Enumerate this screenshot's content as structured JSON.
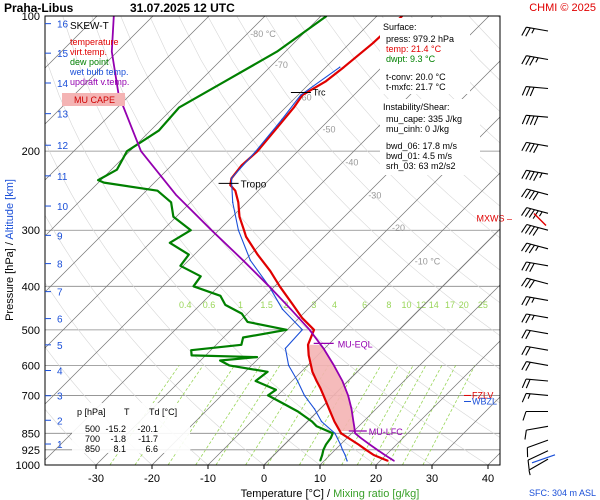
{
  "header": {
    "station": "Praha-Libus",
    "datetime": "31.07.2025 12 UTC",
    "copyright": "CHMI © 2025"
  },
  "legend": {
    "title": "SKEW-T",
    "items": [
      {
        "label": "temperature",
        "color": "#e00000"
      },
      {
        "label": "virt.temp.",
        "color": "#e00000"
      },
      {
        "label": "dew point",
        "color": "#008000"
      },
      {
        "label": "wet bulb temp.",
        "color": "#1a4fd8"
      },
      {
        "label": "updraft v.temp.",
        "color": "#9400b0"
      }
    ],
    "cape_badge": "MU CAPE"
  },
  "surface_panel": {
    "title": "Surface:",
    "rows": [
      {
        "text": "press: 979.2 hPa",
        "color": "#000000"
      },
      {
        "text": "temp: 21.4 °C",
        "color": "#e00000"
      },
      {
        "text": "dwpt: 9.3 °C",
        "color": "#008000"
      },
      {
        "text": "t-conv: 20.0 °C",
        "color": "#000000"
      },
      {
        "text": "t-mxfc: 21.7 °C",
        "color": "#000000"
      }
    ]
  },
  "instability_panel": {
    "title": "Instability/Shear:",
    "rows": [
      "mu_cape: 335 J/kg",
      "mu_cinh: 0 J/kg",
      "bwd_06: 17.8 m/s",
      "bwd_01: 4.5 m/s",
      "srh_03: 63 m2/s2"
    ]
  },
  "level_table": {
    "headers": [
      "p [hPa]",
      "T",
      "Td [°C]"
    ],
    "rows": [
      [
        "500",
        "-15.2",
        "-20.1"
      ],
      [
        "700",
        "-1.8",
        "-11.7"
      ],
      [
        "850",
        "8.1",
        "6.6"
      ]
    ]
  },
  "footer": {
    "sfc": "SFC: 304 m ASL"
  },
  "colors": {
    "temperature": "#e00000",
    "dewpoint": "#008000",
    "wetbulb": "#1a4fd8",
    "updraft": "#9400b0",
    "isotherm": "#777777",
    "isobar": "#888888",
    "mixing_ratio": "#9ad65a",
    "cape_fill": "#f4b4b4"
  },
  "chart_data": {
    "type": "line",
    "title": "Praha-Libus 31.07.2025 12 UTC",
    "xlabel": "Temperature [°C] / Mixing ratio [g/kg]",
    "ylabel": "Pressure [hPa] / Altitude [km]",
    "xlim": [
      -35,
      45
    ],
    "ylim": [
      1000,
      100
    ],
    "y_scale": "log",
    "grid": true,
    "x_ticks": [
      -30,
      -20,
      -10,
      0,
      10,
      20,
      30,
      40
    ],
    "pressure_ticks": [
      100,
      200,
      300,
      400,
      500,
      600,
      700,
      850,
      925,
      1000
    ],
    "altitude_ticks": [
      {
        "km": "16",
        "p": 104
      },
      {
        "km": "15",
        "p": 121
      },
      {
        "km": "14",
        "p": 141
      },
      {
        "km": "13",
        "p": 165
      },
      {
        "km": "12",
        "p": 194
      },
      {
        "km": "11",
        "p": 227
      },
      {
        "km": "10",
        "p": 265
      },
      {
        "km": "9",
        "p": 308
      },
      {
        "km": "8",
        "p": 356
      },
      {
        "km": "7",
        "p": 411
      },
      {
        "km": "6",
        "p": 472
      },
      {
        "km": "5",
        "p": 540
      },
      {
        "km": "4",
        "p": 616
      },
      {
        "km": "3",
        "p": 701
      },
      {
        "km": "2",
        "p": 795
      },
      {
        "km": "1",
        "p": 898
      }
    ],
    "isotherm_labels": [
      {
        "t": -80,
        "label": "-80 °C",
        "p": 109
      },
      {
        "t": -70,
        "label": "-70",
        "p": 128
      },
      {
        "t": -60,
        "label": "-60",
        "p": 151
      },
      {
        "t": -50,
        "label": "-50",
        "p": 178
      },
      {
        "t": -40,
        "label": "-40",
        "p": 211
      },
      {
        "t": -30,
        "label": "-30",
        "p": 250
      },
      {
        "t": -20,
        "label": "-20",
        "p": 295
      },
      {
        "t": -10,
        "label": "-10 °C",
        "p": 350
      }
    ],
    "mixing_ratio_labels": [
      "0.4",
      "0.6",
      "1",
      "1.5",
      "2",
      "3",
      "4",
      "6",
      "8",
      "10",
      "12",
      "14",
      "17",
      "20",
      "25"
    ],
    "mixing_ratio_values": [
      0.4,
      0.6,
      1,
      1.5,
      2,
      3,
      4,
      6,
      8,
      10,
      12,
      14,
      17,
      20,
      25
    ],
    "series": [
      {
        "name": "temperature",
        "p": [
          979,
          950,
          925,
          900,
          850,
          800,
          750,
          700,
          675,
          650,
          620,
          600,
          570,
          540,
          500,
          470,
          440,
          400,
          370,
          340,
          310,
          300,
          280,
          260,
          245,
          238,
          230,
          215,
          200,
          180,
          160,
          150,
          140,
          130,
          115,
          100
        ],
        "t": [
          21.4,
          17.8,
          15.5,
          13.2,
          8.1,
          4.8,
          1.6,
          -1.8,
          -3.6,
          -5.6,
          -8.0,
          -9.4,
          -11.6,
          -13.6,
          -15.2,
          -19.5,
          -23.4,
          -29.1,
          -33.5,
          -38.7,
          -44.0,
          -45.5,
          -48.7,
          -51.5,
          -54.1,
          -56.0,
          -57.0,
          -57.5,
          -57.2,
          -57.8,
          -58.5,
          -59.2,
          -57.5,
          -56.8,
          -55.9,
          -55.5
        ]
      },
      {
        "name": "dew point",
        "p": [
          979,
          950,
          925,
          900,
          870,
          850,
          820,
          800,
          760,
          730,
          700,
          680,
          650,
          620,
          600,
          585,
          575,
          570,
          555,
          540,
          520,
          500,
          480,
          460,
          440,
          420,
          400,
          380,
          360,
          340,
          320,
          300,
          280,
          260,
          245,
          235,
          232,
          220,
          200,
          180,
          160,
          140,
          120,
          100
        ],
        "t": [
          9.3,
          8.6,
          7.9,
          7.4,
          7.1,
          6.6,
          2.5,
          0.8,
          -3.5,
          -7.5,
          -11.7,
          -11.3,
          -16.5,
          -16.0,
          -24.0,
          -26.5,
          -20.5,
          -32.5,
          -33.5,
          -25.5,
          -26.5,
          -20.1,
          -28.5,
          -31.0,
          -35.5,
          -38.0,
          -44.5,
          -45.0,
          -50.5,
          -51.0,
          -56.5,
          -55.0,
          -60.5,
          -63.5,
          -68.0,
          -79.0,
          -80.5,
          -79.0,
          -80.5,
          -78.5,
          -79.0,
          -75.5,
          -71.5,
          -69.0
        ]
      },
      {
        "name": "wet bulb temp.",
        "p": [
          979,
          950,
          925,
          900,
          850,
          800,
          750,
          700,
          650,
          600,
          550,
          500,
          450,
          400,
          350,
          300,
          260,
          230,
          200,
          170,
          150,
          130
        ],
        "t": [
          14.1,
          12.7,
          11.3,
          10.0,
          7.0,
          2.5,
          -1.0,
          -5.2,
          -9.0,
          -13.4,
          -17.0,
          -17.3,
          -24.5,
          -31.0,
          -39.0,
          -46.5,
          -52.5,
          -57.0,
          -57.5,
          -58.5,
          -59.5,
          -57.5
        ]
      },
      {
        "name": "updraft v.temp.",
        "p": [
          979,
          950,
          925,
          900,
          870,
          850,
          820,
          800,
          750,
          700,
          650,
          600,
          550,
          500,
          450,
          400,
          350,
          300,
          250,
          200,
          150,
          120,
          100
        ],
        "t": [
          22.5,
          19.8,
          17.5,
          15.2,
          12.4,
          10.6,
          9.2,
          8.2,
          5.6,
          2.6,
          -1.0,
          -5.3,
          -10.2,
          -16.0,
          -23.0,
          -31.0,
          -40.3,
          -51.3,
          -64.0,
          -78.0,
          -92.0,
          -101.0,
          -107.0
        ]
      }
    ],
    "levels": [
      {
        "label": "Trc",
        "p": 148
      },
      {
        "label": "Tropo",
        "p": 236
      },
      {
        "label": "MXWS",
        "p": 281
      },
      {
        "label": "MU-EQL",
        "p": 536
      },
      {
        "label": "FZLV",
        "p": 700
      },
      {
        "label": "WBZL",
        "p": 722
      },
      {
        "label": "MU-LFC",
        "p": 840
      }
    ],
    "wind_barbs": [
      {
        "p": 108,
        "dir": 280,
        "speed_kt": 25
      },
      {
        "p": 125,
        "dir": 280,
        "speed_kt": 35
      },
      {
        "p": 145,
        "dir": 275,
        "speed_kt": 30
      },
      {
        "p": 168,
        "dir": 275,
        "speed_kt": 40
      },
      {
        "p": 195,
        "dir": 280,
        "speed_kt": 40
      },
      {
        "p": 225,
        "dir": 280,
        "speed_kt": 45
      },
      {
        "p": 250,
        "dir": 285,
        "speed_kt": 40
      },
      {
        "p": 275,
        "dir": 285,
        "speed_kt": 45
      },
      {
        "p": 300,
        "dir": 285,
        "speed_kt": 40
      },
      {
        "p": 330,
        "dir": 285,
        "speed_kt": 35
      },
      {
        "p": 360,
        "dir": 280,
        "speed_kt": 30
      },
      {
        "p": 395,
        "dir": 285,
        "speed_kt": 30
      },
      {
        "p": 430,
        "dir": 280,
        "speed_kt": 25
      },
      {
        "p": 470,
        "dir": 280,
        "speed_kt": 25
      },
      {
        "p": 510,
        "dir": 280,
        "speed_kt": 20
      },
      {
        "p": 555,
        "dir": 280,
        "speed_kt": 20
      },
      {
        "p": 600,
        "dir": 280,
        "speed_kt": 20
      },
      {
        "p": 650,
        "dir": 275,
        "speed_kt": 20
      },
      {
        "p": 700,
        "dir": 275,
        "speed_kt": 15
      },
      {
        "p": 760,
        "dir": 270,
        "speed_kt": 10
      },
      {
        "p": 820,
        "dir": 260,
        "speed_kt": 10
      },
      {
        "p": 880,
        "dir": 250,
        "speed_kt": 10
      },
      {
        "p": 930,
        "dir": 245,
        "speed_kt": 10
      },
      {
        "p": 970,
        "dir": 240,
        "speed_kt": 5
      }
    ]
  }
}
